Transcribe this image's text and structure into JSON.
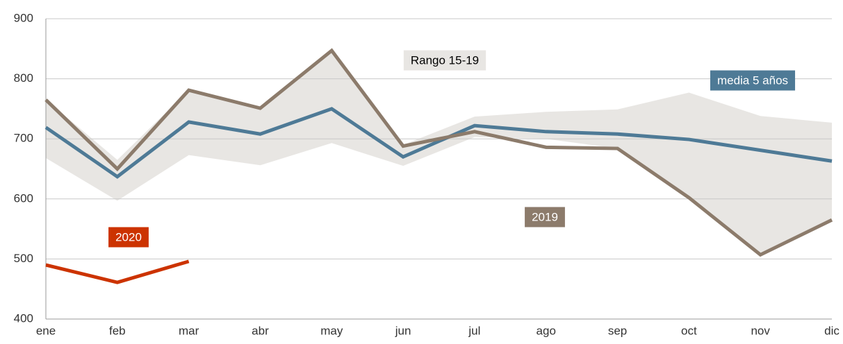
{
  "chart_data": {
    "type": "line",
    "categories": [
      "ene",
      "feb",
      "mar",
      "abr",
      "may",
      "jun",
      "jul",
      "ago",
      "sep",
      "oct",
      "nov",
      "dic"
    ],
    "range": {
      "name": "Rango 15-19",
      "color": "#e8e6e3",
      "high": [
        765,
        665,
        781,
        751,
        847,
        690,
        737,
        745,
        749,
        777,
        738,
        727
      ],
      "low": [
        668,
        597,
        673,
        656,
        693,
        655,
        703,
        700,
        684,
        602,
        507,
        565
      ]
    },
    "series": [
      {
        "name": "media 5 años",
        "color": "#4e7a96",
        "values": [
          719,
          637,
          728,
          708,
          750,
          670,
          722,
          712,
          708,
          699,
          681,
          663
        ]
      },
      {
        "name": "2019",
        "color": "#8c7b6b",
        "values": [
          765,
          650,
          781,
          751,
          847,
          688,
          712,
          686,
          684,
          602,
          507,
          565
        ]
      },
      {
        "name": "2020",
        "color": "#cc3300",
        "values": [
          490,
          461,
          496,
          null,
          null,
          null,
          null,
          null,
          null,
          null,
          null,
          null
        ]
      }
    ],
    "ylim": [
      400,
      900
    ],
    "yticks": [
      400,
      500,
      600,
      700,
      800,
      900
    ],
    "grid": true
  }
}
